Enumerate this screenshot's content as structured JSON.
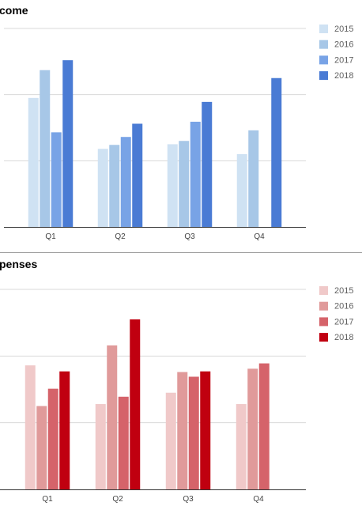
{
  "colors": {
    "income": [
      "#cfe2f3",
      "#a7c7e7",
      "#78a3e6",
      "#4a7bd4"
    ],
    "expenses": [
      "#f0c9c9",
      "#e09a9a",
      "#d5636a",
      "#c00010"
    ]
  },
  "chart_data": [
    {
      "type": "bar",
      "title": "come",
      "categories": [
        "Q1",
        "Q2",
        "Q3",
        "Q4"
      ],
      "ylim": [
        0,
        300
      ],
      "grid": true,
      "legend_position": "right",
      "series": [
        {
          "name": "2015",
          "values": [
            195,
            118,
            125,
            110
          ]
        },
        {
          "name": "2016",
          "values": [
            237,
            124,
            130,
            146
          ]
        },
        {
          "name": "2017",
          "values": [
            143,
            136,
            159,
            0
          ]
        },
        {
          "name": "2018",
          "values": [
            252,
            156,
            189,
            225
          ]
        }
      ]
    },
    {
      "type": "bar",
      "title": "penses",
      "categories": [
        "Q1",
        "Q2",
        "Q3",
        "Q4"
      ],
      "ylim": [
        0,
        300
      ],
      "grid": true,
      "legend_position": "right",
      "series": [
        {
          "name": "2015",
          "values": [
            186,
            128,
            145,
            128
          ]
        },
        {
          "name": "2016",
          "values": [
            125,
            216,
            176,
            181
          ]
        },
        {
          "name": "2017",
          "values": [
            151,
            139,
            169,
            189
          ]
        },
        {
          "name": "2018",
          "values": [
            177,
            255,
            177,
            0
          ]
        }
      ]
    }
  ]
}
